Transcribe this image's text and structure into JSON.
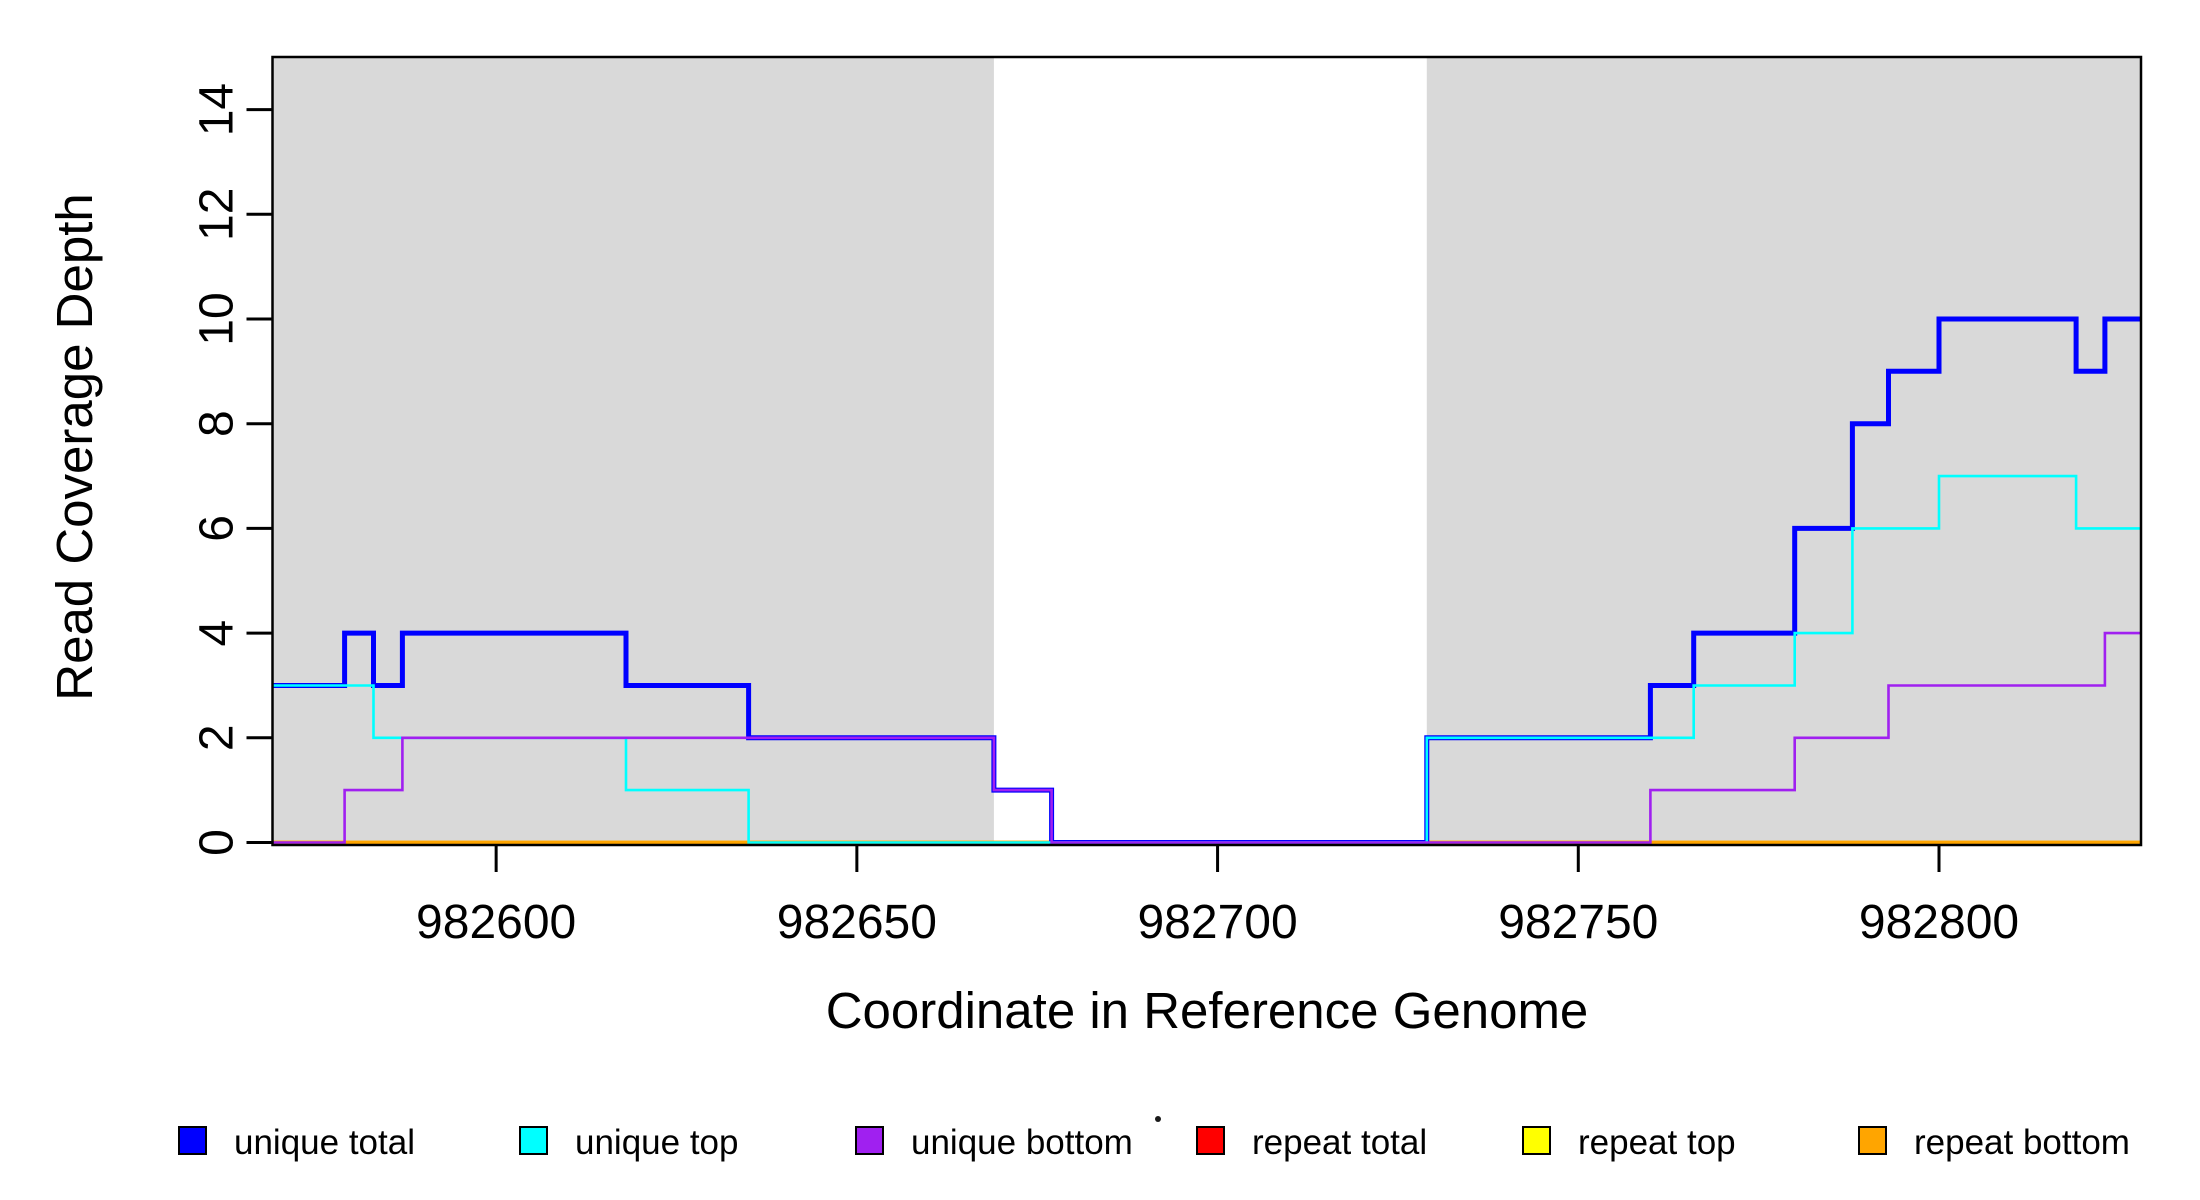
{
  "chart_data": {
    "type": "line",
    "subtype": "step",
    "title": "",
    "xlabel": "Coordinate in Reference Genome",
    "ylabel": "Read Coverage Depth",
    "xlim": [
      982569,
      982828
    ],
    "ylim": [
      0,
      15
    ],
    "x_ticks": [
      982600,
      982650,
      982700,
      982750,
      982800
    ],
    "y_ticks": [
      0,
      2,
      4,
      6,
      8,
      10,
      12,
      14
    ],
    "grid": false,
    "legend_position": "bottom",
    "background_shading": {
      "color": "#D9D9D9",
      "regions": [
        {
          "x0": 982569,
          "x1": 982669
        },
        {
          "x0": 982729,
          "x1": 982828
        }
      ]
    },
    "series": [
      {
        "name": "unique total",
        "color": "#0000FF",
        "line_width": 5,
        "steps": [
          [
            982569,
            3
          ],
          [
            982579,
            4
          ],
          [
            982583,
            3
          ],
          [
            982587,
            4
          ],
          [
            982618,
            3
          ],
          [
            982635,
            2
          ],
          [
            982669,
            1
          ],
          [
            982677,
            0
          ],
          [
            982729,
            2
          ],
          [
            982760,
            3
          ],
          [
            982766,
            4
          ],
          [
            982780,
            6
          ],
          [
            982788,
            8
          ],
          [
            982793,
            9
          ],
          [
            982800,
            10
          ],
          [
            982819,
            9
          ],
          [
            982823,
            10
          ],
          [
            982828,
            10
          ]
        ]
      },
      {
        "name": "unique top",
        "color": "#00FFFF",
        "line_width": 2.6,
        "steps": [
          [
            982569,
            3
          ],
          [
            982583,
            2
          ],
          [
            982618,
            1
          ],
          [
            982635,
            0
          ],
          [
            982729,
            2
          ],
          [
            982766,
            3
          ],
          [
            982780,
            4
          ],
          [
            982788,
            6
          ],
          [
            982800,
            7
          ],
          [
            982819,
            6
          ],
          [
            982828,
            6
          ]
        ]
      },
      {
        "name": "unique bottom",
        "color": "#A020F0",
        "line_width": 2.6,
        "steps": [
          [
            982569,
            0
          ],
          [
            982579,
            1
          ],
          [
            982587,
            2
          ],
          [
            982669,
            1
          ],
          [
            982677,
            0
          ],
          [
            982760,
            1
          ],
          [
            982780,
            2
          ],
          [
            982793,
            3
          ],
          [
            982823,
            4
          ],
          [
            982828,
            4
          ]
        ]
      },
      {
        "name": "repeat total",
        "color": "#FF0000",
        "line_width": 3.5,
        "steps": [
          [
            982569,
            0
          ],
          [
            982828,
            0
          ]
        ]
      },
      {
        "name": "repeat top",
        "color": "#FFFF00",
        "line_width": 3.5,
        "steps": [
          [
            982569,
            0
          ],
          [
            982828,
            0
          ]
        ]
      },
      {
        "name": "repeat bottom",
        "color": "#FFA500",
        "line_width": 3.5,
        "steps": [
          [
            982569,
            0
          ],
          [
            982828,
            0
          ]
        ]
      }
    ],
    "draw_order": [
      3,
      4,
      5,
      0,
      1,
      2
    ]
  },
  "legend": {
    "items": [
      {
        "label": "unique total",
        "color": "#0000FF"
      },
      {
        "label": "unique top",
        "color": "#00FFFF"
      },
      {
        "label": "unique bottom",
        "color": "#A020F0"
      },
      {
        "label": "repeat total",
        "color": "#FF0000"
      },
      {
        "label": "repeat top",
        "color": "#FFFF00"
      },
      {
        "label": "repeat bottom",
        "color": "#FFA500"
      }
    ]
  }
}
